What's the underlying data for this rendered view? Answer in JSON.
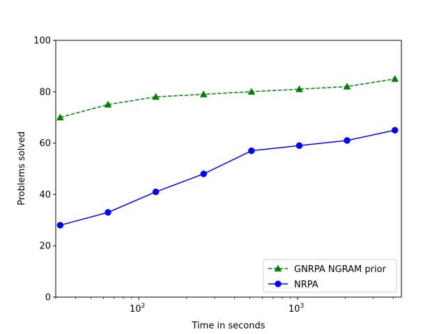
{
  "chart_data": {
    "type": "line",
    "title": "",
    "xlabel": "Time in seconds",
    "ylabel": "Problems solved",
    "x_scale": "log",
    "xlim": [
      30,
      4500
    ],
    "ylim": [
      0,
      100
    ],
    "grid": false,
    "legend_position": "lower-right",
    "y_ticks": [
      0,
      20,
      40,
      60,
      80,
      100
    ],
    "x_major_ticks": [
      {
        "value": 100,
        "base": "10",
        "exp": "2"
      },
      {
        "value": 1000,
        "base": "10",
        "exp": "3"
      }
    ],
    "x_minor_ticks": [
      30,
      40,
      50,
      60,
      70,
      80,
      90,
      200,
      300,
      400,
      500,
      600,
      700,
      800,
      900,
      2000,
      3000,
      4000
    ],
    "x": [
      32,
      64,
      128,
      256,
      512,
      1024,
      2048,
      4096
    ],
    "series": [
      {
        "name": "GNRPA NGRAM prior",
        "values": [
          70,
          75,
          78,
          79,
          80,
          81,
          82,
          85
        ],
        "color": "#008000",
        "line_style": "dashed",
        "marker": "triangle"
      },
      {
        "name": "NRPA",
        "values": [
          28,
          33,
          41,
          48,
          57,
          59,
          61,
          65
        ],
        "color": "#0000ff",
        "line_style": "solid",
        "marker": "circle"
      }
    ]
  }
}
